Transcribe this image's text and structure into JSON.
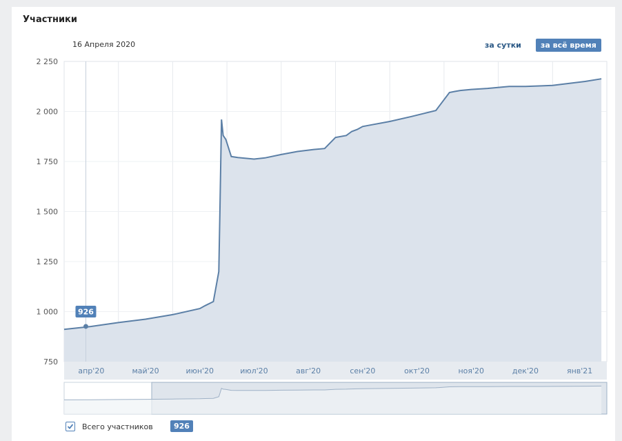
{
  "header": {
    "title": "Участники",
    "date_label": "16 Апреля 2020",
    "period_day": "за сутки",
    "period_all": "за всё время"
  },
  "legend": {
    "label": "Всего участников",
    "value": "926",
    "checked": true
  },
  "colors": {
    "line": "#5b7fa6",
    "fill": "#dce3ec",
    "accent": "#5181b8"
  },
  "chart_data": {
    "type": "area",
    "title": "Участники",
    "ylim": [
      750,
      2250
    ],
    "yticks": [
      750,
      1000,
      1250,
      1500,
      1750,
      2000,
      2250
    ],
    "ytick_labels": [
      "750",
      "1 000",
      "1 250",
      "1 500",
      "1 750",
      "2 000",
      "2 250"
    ],
    "xtick_labels": [
      "апр'20",
      "май'20",
      "июн'20",
      "июл'20",
      "авг'20",
      "сен'20",
      "окт'20",
      "ноя'20",
      "дек'20",
      "янв'21"
    ],
    "grid": true,
    "selected_point": {
      "x": 0.4,
      "y": 926,
      "label": "926"
    },
    "series": [
      {
        "name": "Всего участников",
        "x": [
          0,
          0.5,
          1,
          1.5,
          2,
          2.5,
          2.6,
          2.75,
          2.85,
          2.87,
          2.9,
          2.93,
          2.98,
          3.08,
          3.2,
          3.5,
          3.7,
          4.0,
          4.3,
          4.6,
          4.8,
          5.0,
          5.2,
          5.3,
          5.4,
          5.5,
          5.6,
          6.0,
          6.4,
          6.85,
          7.1,
          7.2,
          7.3,
          7.5,
          7.8,
          8.2,
          8.5,
          8.8,
          9.0,
          9.3,
          9.6,
          9.9
        ],
        "y": [
          911,
          926,
          945,
          962,
          985,
          1015,
          1030,
          1050,
          1200,
          1500,
          1960,
          1880,
          1860,
          1775,
          1770,
          1762,
          1768,
          1785,
          1800,
          1810,
          1815,
          1870,
          1880,
          1900,
          1910,
          1925,
          1930,
          1950,
          1975,
          2005,
          2095,
          2100,
          2105,
          2110,
          2115,
          2125,
          2125,
          2128,
          2130,
          2140,
          2150,
          2163
        ]
      }
    ]
  }
}
